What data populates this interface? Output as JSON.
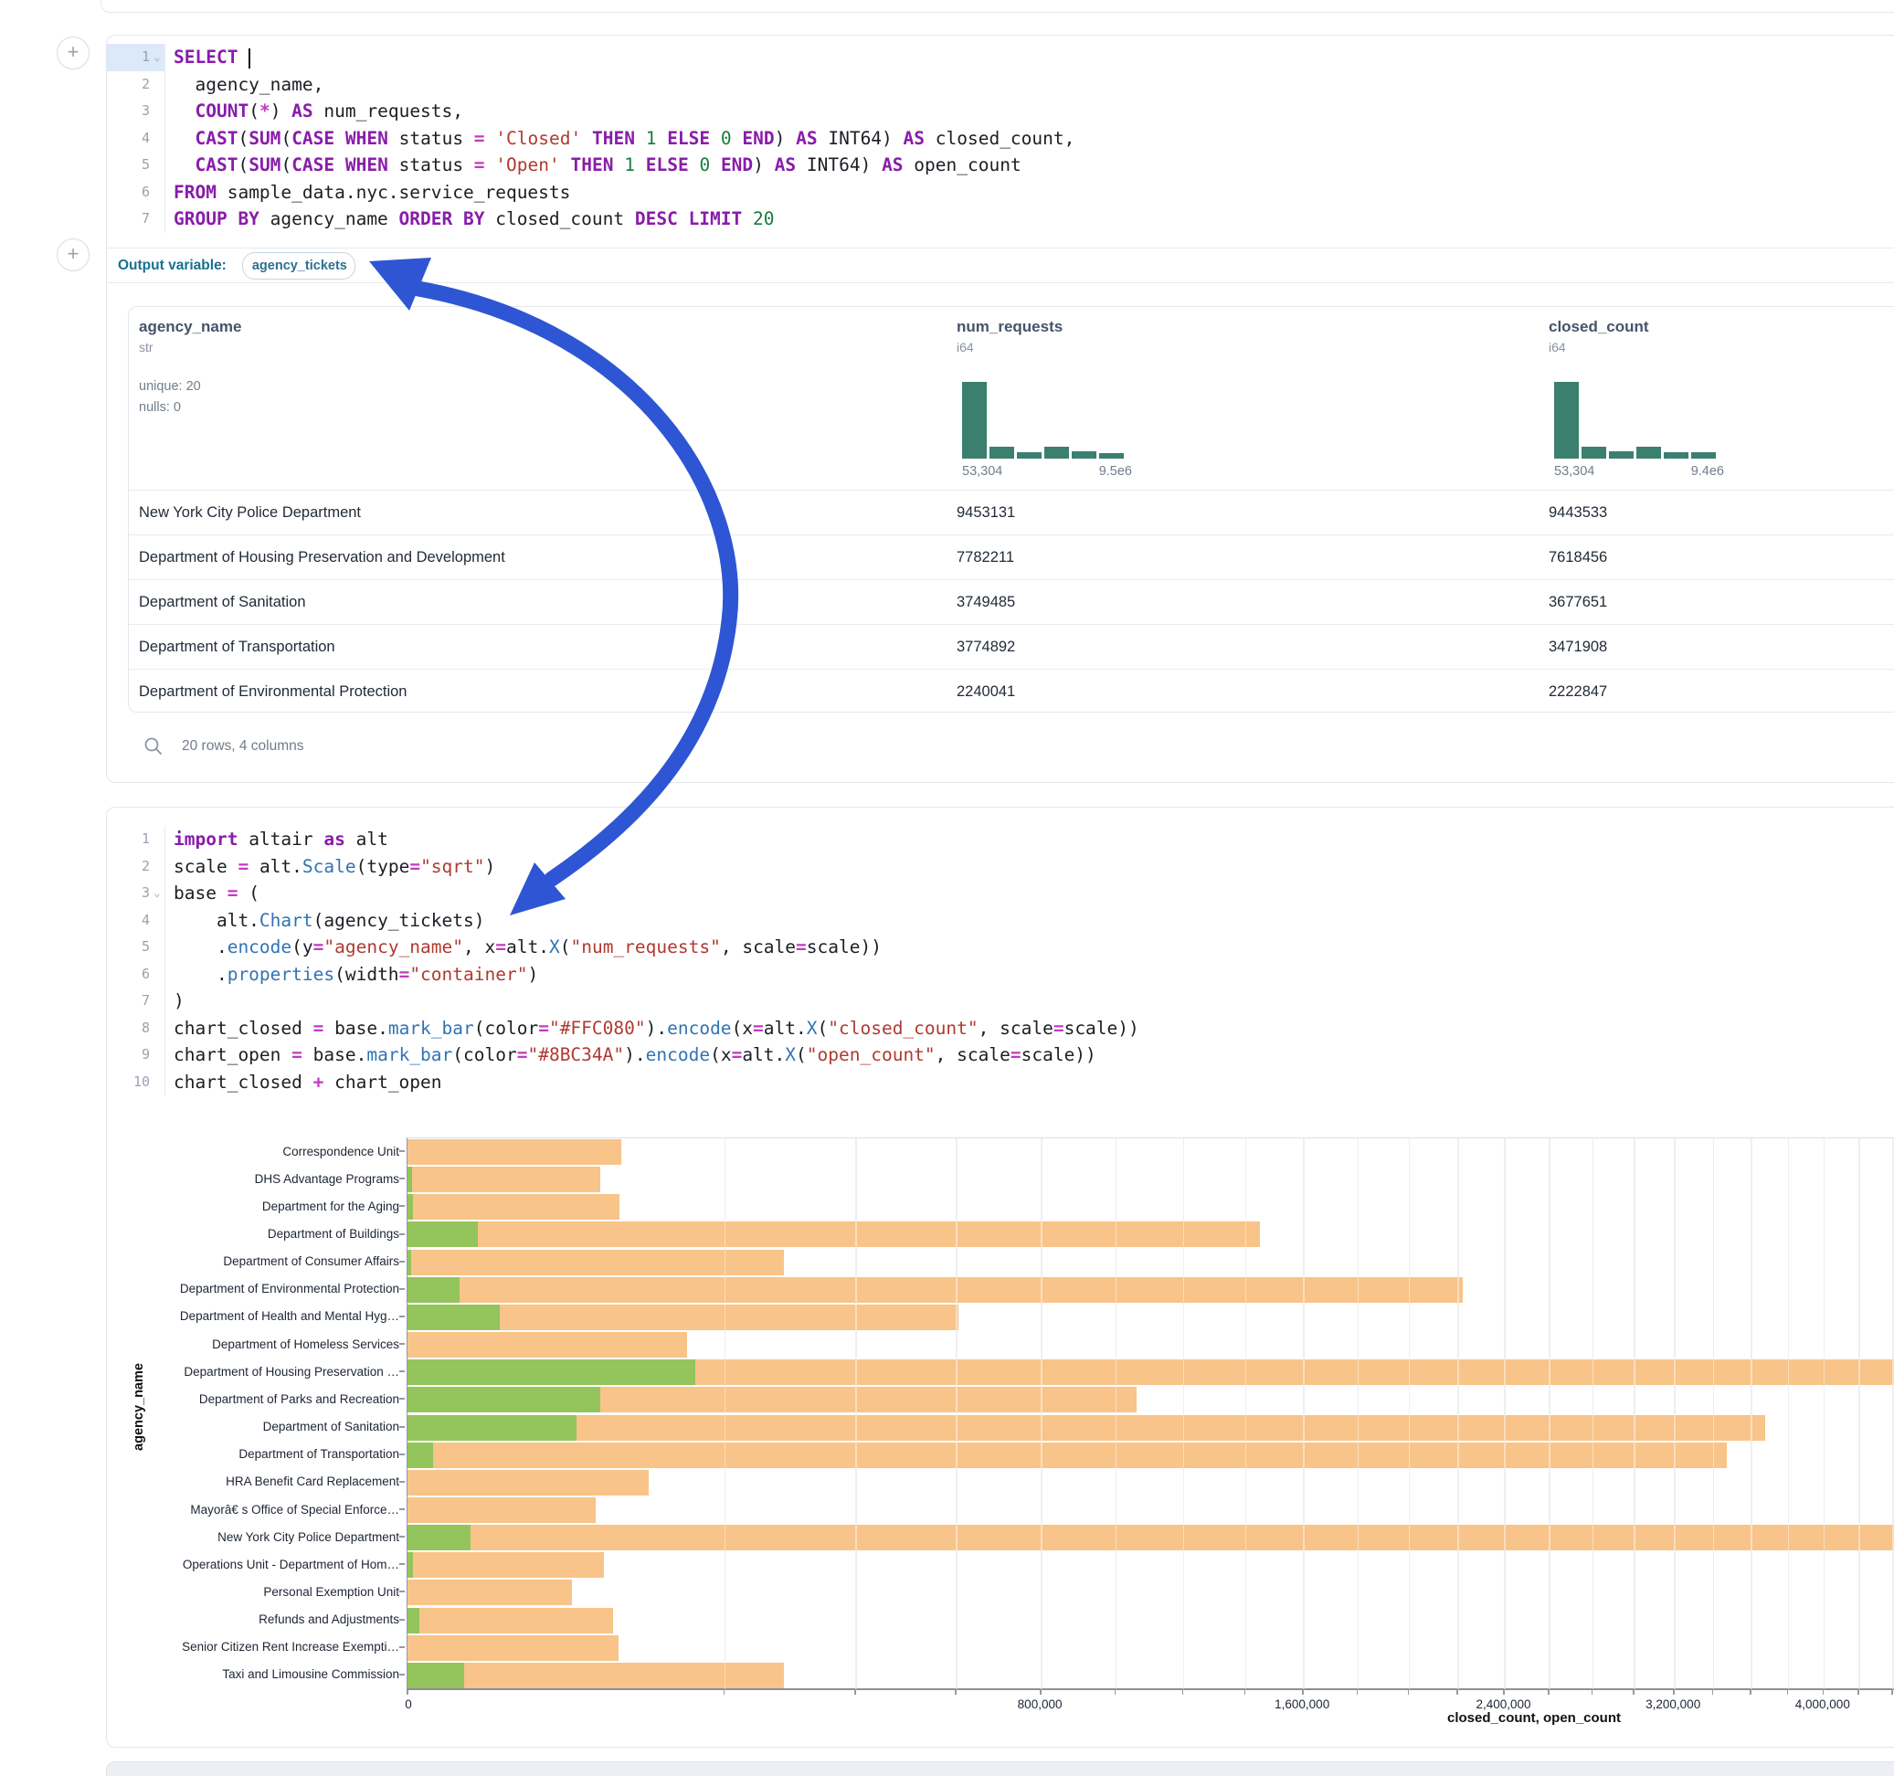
{
  "colors": {
    "bar_closed": "#F8C489",
    "bar_open": "#94C45C",
    "histogram": "#3B7F6E",
    "arrow_blue": "#2E55D4",
    "keyword_purple": "#8A1CAA",
    "string_red": "#B03A30",
    "number_green": "#177D3D",
    "function_blue": "#3273B4"
  },
  "sql_cell": {
    "lines": [
      {
        "n": "1",
        "chev": true,
        "active": true,
        "tokens": [
          [
            "k",
            "SELECT"
          ],
          [
            "d",
            " "
          ],
          [
            "cur",
            ""
          ]
        ]
      },
      {
        "n": "2",
        "tokens": [
          [
            "d",
            "  agency_name,"
          ]
        ]
      },
      {
        "n": "3",
        "tokens": [
          [
            "d",
            "  "
          ],
          [
            "k",
            "COUNT"
          ],
          [
            "d",
            "("
          ],
          [
            "o",
            "*"
          ],
          [
            "d",
            ") "
          ],
          [
            "k",
            "AS"
          ],
          [
            "d",
            " num_requests,"
          ]
        ]
      },
      {
        "n": "4",
        "tokens": [
          [
            "d",
            "  "
          ],
          [
            "k",
            "CAST"
          ],
          [
            "d",
            "("
          ],
          [
            "k",
            "SUM"
          ],
          [
            "d",
            "("
          ],
          [
            "k",
            "CASE"
          ],
          [
            "d",
            " "
          ],
          [
            "k",
            "WHEN"
          ],
          [
            "d",
            " status "
          ],
          [
            "o",
            "="
          ],
          [
            "d",
            " "
          ],
          [
            "s",
            "'Closed'"
          ],
          [
            "d",
            " "
          ],
          [
            "k",
            "THEN"
          ],
          [
            "d",
            " "
          ],
          [
            "n",
            "1"
          ],
          [
            "d",
            " "
          ],
          [
            "k",
            "ELSE"
          ],
          [
            "d",
            " "
          ],
          [
            "n",
            "0"
          ],
          [
            "d",
            " "
          ],
          [
            "k",
            "END"
          ],
          [
            "d",
            ") "
          ],
          [
            "k",
            "AS"
          ],
          [
            "d",
            " INT64) "
          ],
          [
            "k",
            "AS"
          ],
          [
            "d",
            " closed_count,"
          ]
        ]
      },
      {
        "n": "5",
        "tokens": [
          [
            "d",
            "  "
          ],
          [
            "k",
            "CAST"
          ],
          [
            "d",
            "("
          ],
          [
            "k",
            "SUM"
          ],
          [
            "d",
            "("
          ],
          [
            "k",
            "CASE"
          ],
          [
            "d",
            " "
          ],
          [
            "k",
            "WHEN"
          ],
          [
            "d",
            " status "
          ],
          [
            "o",
            "="
          ],
          [
            "d",
            " "
          ],
          [
            "s",
            "'Open'"
          ],
          [
            "d",
            " "
          ],
          [
            "k",
            "THEN"
          ],
          [
            "d",
            " "
          ],
          [
            "n",
            "1"
          ],
          [
            "d",
            " "
          ],
          [
            "k",
            "ELSE"
          ],
          [
            "d",
            " "
          ],
          [
            "n",
            "0"
          ],
          [
            "d",
            " "
          ],
          [
            "k",
            "END"
          ],
          [
            "d",
            ") "
          ],
          [
            "k",
            "AS"
          ],
          [
            "d",
            " INT64) "
          ],
          [
            "k",
            "AS"
          ],
          [
            "d",
            " open_count"
          ]
        ]
      },
      {
        "n": "6",
        "tokens": [
          [
            "k",
            "FROM"
          ],
          [
            "d",
            " sample_data.nyc.service_requests"
          ]
        ]
      },
      {
        "n": "7",
        "tokens": [
          [
            "k",
            "GROUP BY"
          ],
          [
            "d",
            " agency_name "
          ],
          [
            "k",
            "ORDER BY"
          ],
          [
            "d",
            " closed_count "
          ],
          [
            "k",
            "DESC"
          ],
          [
            "d",
            " "
          ],
          [
            "k",
            "LIMIT"
          ],
          [
            "d",
            " "
          ],
          [
            "n",
            "20"
          ]
        ]
      }
    ],
    "output_variable": {
      "label": "Output variable:",
      "value": "agency_tickets"
    }
  },
  "table": {
    "columns": [
      {
        "name": "agency_name",
        "type": "str",
        "stats": [
          "unique: 20",
          "nulls: 0"
        ]
      },
      {
        "name": "num_requests",
        "type": "i64",
        "hist": {
          "bars": [
            1,
            0.16,
            0.085,
            0.16,
            0.09,
            0.075
          ],
          "min_label": "53,304",
          "max_label": "9.5e6"
        }
      },
      {
        "name": "closed_count",
        "type": "i64",
        "hist": {
          "bars": [
            1,
            0.16,
            0.09,
            0.16,
            0.08,
            0.08
          ],
          "min_label": "53,304",
          "max_label": "9.4e6"
        }
      }
    ],
    "rows": [
      {
        "agency_name": "New York City Police Department",
        "num_requests": "9453131",
        "closed_count": "9443533"
      },
      {
        "agency_name": "Department of Housing Preservation and Development",
        "num_requests": "7782211",
        "closed_count": "7618456"
      },
      {
        "agency_name": "Department of Sanitation",
        "num_requests": "3749485",
        "closed_count": "3677651"
      },
      {
        "agency_name": "Department of Transportation",
        "num_requests": "3774892",
        "closed_count": "3471908"
      },
      {
        "agency_name": "Department of Environmental Protection",
        "num_requests": "2240041",
        "closed_count": "2222847"
      }
    ],
    "footer": "20 rows, 4 columns"
  },
  "python_cell": {
    "lines": [
      {
        "n": "1",
        "tokens": [
          [
            "k",
            "import"
          ],
          [
            "d",
            " altair "
          ],
          [
            "k",
            "as"
          ],
          [
            "d",
            " alt"
          ]
        ]
      },
      {
        "n": "2",
        "tokens": [
          [
            "d",
            "scale "
          ],
          [
            "o",
            "="
          ],
          [
            "d",
            " alt."
          ],
          [
            "f",
            "Scale"
          ],
          [
            "d",
            "(type"
          ],
          [
            "o",
            "="
          ],
          [
            "s",
            "\"sqrt\""
          ],
          [
            "d",
            ")"
          ]
        ]
      },
      {
        "n": "3",
        "chev": true,
        "tokens": [
          [
            "d",
            "base "
          ],
          [
            "o",
            "="
          ],
          [
            "d",
            " ("
          ]
        ]
      },
      {
        "n": "4",
        "tokens": [
          [
            "d",
            "    alt."
          ],
          [
            "f",
            "Chart"
          ],
          [
            "d",
            "(agency_tickets)"
          ]
        ]
      },
      {
        "n": "5",
        "tokens": [
          [
            "d",
            "    ."
          ],
          [
            "f",
            "encode"
          ],
          [
            "d",
            "(y"
          ],
          [
            "o",
            "="
          ],
          [
            "s",
            "\"agency_name\""
          ],
          [
            "d",
            ", x"
          ],
          [
            "o",
            "="
          ],
          [
            "d",
            "alt."
          ],
          [
            "f",
            "X"
          ],
          [
            "d",
            "("
          ],
          [
            "s",
            "\"num_requests\""
          ],
          [
            "d",
            ", scale"
          ],
          [
            "o",
            "="
          ],
          [
            "d",
            "scale))"
          ]
        ]
      },
      {
        "n": "6",
        "tokens": [
          [
            "d",
            "    ."
          ],
          [
            "f",
            "properties"
          ],
          [
            "d",
            "(width"
          ],
          [
            "o",
            "="
          ],
          [
            "s",
            "\"container\""
          ],
          [
            "d",
            ")"
          ]
        ]
      },
      {
        "n": "7",
        "tokens": [
          [
            "d",
            ")"
          ]
        ]
      },
      {
        "n": "8",
        "tokens": [
          [
            "d",
            "chart_closed "
          ],
          [
            "o",
            "="
          ],
          [
            "d",
            " base."
          ],
          [
            "f",
            "mark_bar"
          ],
          [
            "d",
            "(color"
          ],
          [
            "o",
            "="
          ],
          [
            "s",
            "\"#FFC080\""
          ],
          [
            "d",
            ")."
          ],
          [
            "f",
            "encode"
          ],
          [
            "d",
            "(x"
          ],
          [
            "o",
            "="
          ],
          [
            "d",
            "alt."
          ],
          [
            "f",
            "X"
          ],
          [
            "d",
            "("
          ],
          [
            "s",
            "\"closed_count\""
          ],
          [
            "d",
            ", scale"
          ],
          [
            "o",
            "="
          ],
          [
            "d",
            "scale))"
          ]
        ]
      },
      {
        "n": "9",
        "tokens": [
          [
            "d",
            "chart_open "
          ],
          [
            "o",
            "="
          ],
          [
            "d",
            " base."
          ],
          [
            "f",
            "mark_bar"
          ],
          [
            "d",
            "(color"
          ],
          [
            "o",
            "="
          ],
          [
            "s",
            "\"#8BC34A\""
          ],
          [
            "d",
            ")."
          ],
          [
            "f",
            "encode"
          ],
          [
            "d",
            "(x"
          ],
          [
            "o",
            "="
          ],
          [
            "d",
            "alt."
          ],
          [
            "f",
            "X"
          ],
          [
            "d",
            "("
          ],
          [
            "s",
            "\"open_count\""
          ],
          [
            "d",
            ", scale"
          ],
          [
            "o",
            "="
          ],
          [
            "d",
            "scale))"
          ]
        ]
      },
      {
        "n": "10",
        "tokens": [
          [
            "d",
            "chart_closed "
          ],
          [
            "o",
            "+"
          ],
          [
            "d",
            " chart_open"
          ]
        ]
      }
    ]
  },
  "chart_data": {
    "type": "bar",
    "orientation": "horizontal",
    "scale_type": "sqrt",
    "xlabel": "closed_count, open_count",
    "ylabel": "agency_name",
    "grid": true,
    "x_axis_max_visible": 4414000,
    "categories": [
      "Correspondence Unit",
      "DHS Advantage Programs",
      "Department for the Aging",
      "Department of Buildings",
      "Department of Consumer Affairs",
      "Department of Environmental Protection",
      "Department of Health and Mental Hyg…",
      "Department of Homeless Services",
      "Department of Housing Preservation …",
      "Department of Parks and Recreation",
      "Department of Sanitation",
      "Department of Transportation",
      "HRA Benefit Card Replacement",
      "Mayorâ€ s Office of Special Enforce…",
      "New York City Police Department",
      "Operations Unit - Department of Hom…",
      "Personal Exemption Unit",
      "Refunds and Adjustments",
      "Senior Citizen Rent Increase Exempti…",
      "Taxi and Limousine Commission"
    ],
    "series": [
      {
        "name": "closed_count",
        "color": "#F8C489",
        "values": [
          91000,
          74000,
          90000,
          1450000,
          283000,
          2222847,
          606000,
          156000,
          7618456,
          1060000,
          3677651,
          3471908,
          116000,
          71000,
          9443533,
          77000,
          54000,
          84000,
          89000,
          283000
        ]
      },
      {
        "name": "open_count",
        "color": "#94C45C",
        "values": [
          0,
          40,
          60,
          10000,
          30,
          5400,
          17000,
          0,
          165000,
          74000,
          57000,
          1300,
          0,
          0,
          8000,
          70,
          0,
          270,
          0,
          6400
        ]
      }
    ],
    "x_ticks": [
      {
        "v": 0,
        "label": "0"
      },
      {
        "v": 800000,
        "label": "800,000"
      },
      {
        "v": 1600000,
        "label": "1,600,000"
      },
      {
        "v": 2400000,
        "label": "2,400,000"
      },
      {
        "v": 3200000,
        "label": "3,200,000"
      },
      {
        "v": 4000000,
        "label": "4,000,000"
      }
    ],
    "minor_tick_step": 200000
  }
}
